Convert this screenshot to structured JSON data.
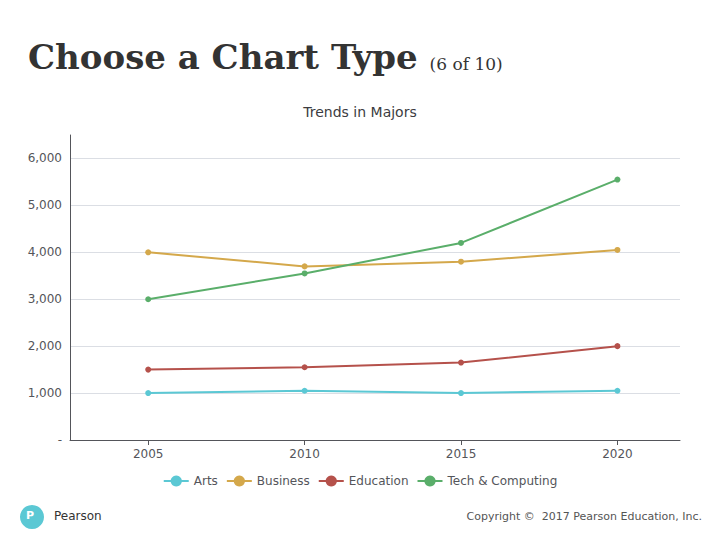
{
  "chart_data": {
    "type": "line",
    "title": "Trends in Majors",
    "annotations": [
      "Choose a Chart Type",
      "(6 of 10)",
      "P",
      "Pearson",
      "Copyright ©  2017 Pearson Education, Inc."
    ],
    "x": [
      2005,
      2010,
      2015,
      2020
    ],
    "xlim": [
      2002.5,
      2022
    ],
    "xticks": [
      2005,
      2010,
      2015,
      2020
    ],
    "ylim": [
      0,
      6500
    ],
    "yticks": [
      {
        "value": 0,
        "label": "-"
      },
      {
        "value": 1000,
        "label": "1,000"
      },
      {
        "value": 2000,
        "label": "2,000"
      },
      {
        "value": 3000,
        "label": "3,000"
      },
      {
        "value": 4000,
        "label": "4,000"
      },
      {
        "value": 5000,
        "label": "5,000"
      },
      {
        "value": 6000,
        "label": "6,000"
      }
    ],
    "grid": true,
    "legend": "bottom",
    "series": [
      {
        "name": "Arts",
        "color": "#5BC8D4",
        "marker": "circle",
        "values": [
          1000,
          1050,
          1000,
          1050
        ]
      },
      {
        "name": "Business",
        "color": "#D4A84B",
        "marker": "circle",
        "values": [
          4000,
          3700,
          3800,
          4050
        ]
      },
      {
        "name": "Education",
        "color": "#B5514B",
        "marker": "circle",
        "values": [
          1500,
          1550,
          1650,
          2000
        ]
      },
      {
        "name": "Tech & Computing",
        "color": "#5AAE6A",
        "marker": "circle",
        "values": [
          3000,
          3550,
          4200,
          5550
        ]
      }
    ]
  }
}
